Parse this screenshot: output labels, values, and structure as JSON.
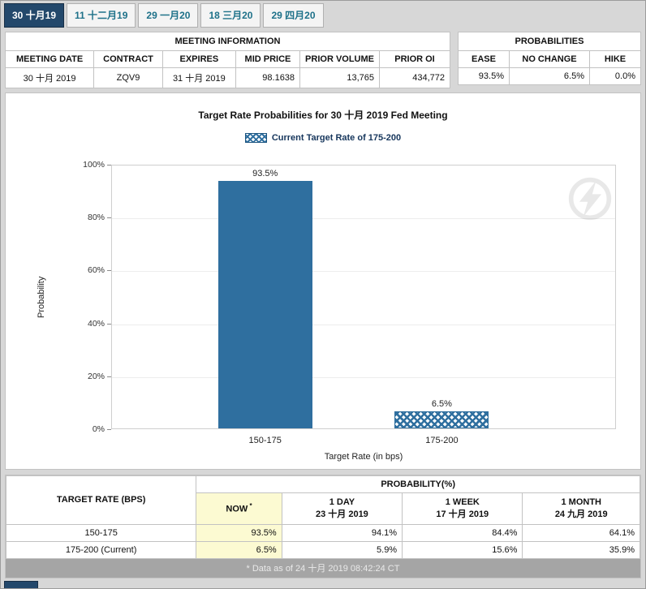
{
  "colors": {
    "tab_active_bg": "#23486b",
    "tab_text": "#1e7189",
    "now_highlight": "#fcfad2",
    "footer_bg": "#a5a5a5"
  },
  "tabs": {
    "items": [
      {
        "label": "30 十月19",
        "active": true
      },
      {
        "label": "11 十二月19",
        "active": false
      },
      {
        "label": "29 一月20",
        "active": false
      },
      {
        "label": "18 三月20",
        "active": false
      },
      {
        "label": "29 四月20",
        "active": false
      }
    ]
  },
  "meeting_info": {
    "title": "MEETING INFORMATION",
    "headers": [
      "MEETING DATE",
      "CONTRACT",
      "EXPIRES",
      "MID PRICE",
      "PRIOR VOLUME",
      "PRIOR OI"
    ],
    "row": [
      "30 十月 2019",
      "ZQV9",
      "31 十月 2019",
      "98.1638",
      "13,765",
      "434,772"
    ]
  },
  "probabilities_summary": {
    "title": "PROBABILITIES",
    "headers": [
      "EASE",
      "NO CHANGE",
      "HIKE"
    ],
    "row": [
      "93.5%",
      "6.5%",
      "0.0%"
    ]
  },
  "chart_data": {
    "type": "bar",
    "title": "Target Rate Probabilities for 30 十月 2019 Fed Meeting",
    "legend": "Current Target Rate of 175-200",
    "categories": [
      "150-175",
      "175-200"
    ],
    "values": [
      93.5,
      6.5
    ],
    "value_labels": [
      "93.5%",
      "6.5%"
    ],
    "bar_styles": [
      "solid",
      "crosshatch"
    ],
    "bar_color": "#2f6f9f",
    "xlabel": "Target Rate (in bps)",
    "ylabel": "Probability",
    "ylim": [
      0,
      100
    ],
    "ytick_labels": [
      "0%",
      "20%",
      "40%",
      "60%",
      "80%",
      "100%"
    ],
    "grid": "horizontal",
    "legend_position": "top-center"
  },
  "history_table": {
    "col1_header": "TARGET RATE (BPS)",
    "group_header": "PROBABILITY(%)",
    "sub_headers": [
      {
        "line1": "NOW",
        "sup": "*",
        "line2": ""
      },
      {
        "line1": "1 DAY",
        "sup": "",
        "line2": "23 十月 2019"
      },
      {
        "line1": "1 WEEK",
        "sup": "",
        "line2": "17 十月 2019"
      },
      {
        "line1": "1 MONTH",
        "sup": "",
        "line2": "24 九月 2019"
      }
    ],
    "rows": [
      {
        "label": "150-175",
        "values": [
          "93.5%",
          "94.1%",
          "84.4%",
          "64.1%"
        ]
      },
      {
        "label": "175-200 (Current)",
        "values": [
          "6.5%",
          "5.9%",
          "15.6%",
          "35.9%"
        ]
      }
    ]
  },
  "footer": {
    "note": "* Data as of 24 十月 2019 08:42:24 CT"
  }
}
